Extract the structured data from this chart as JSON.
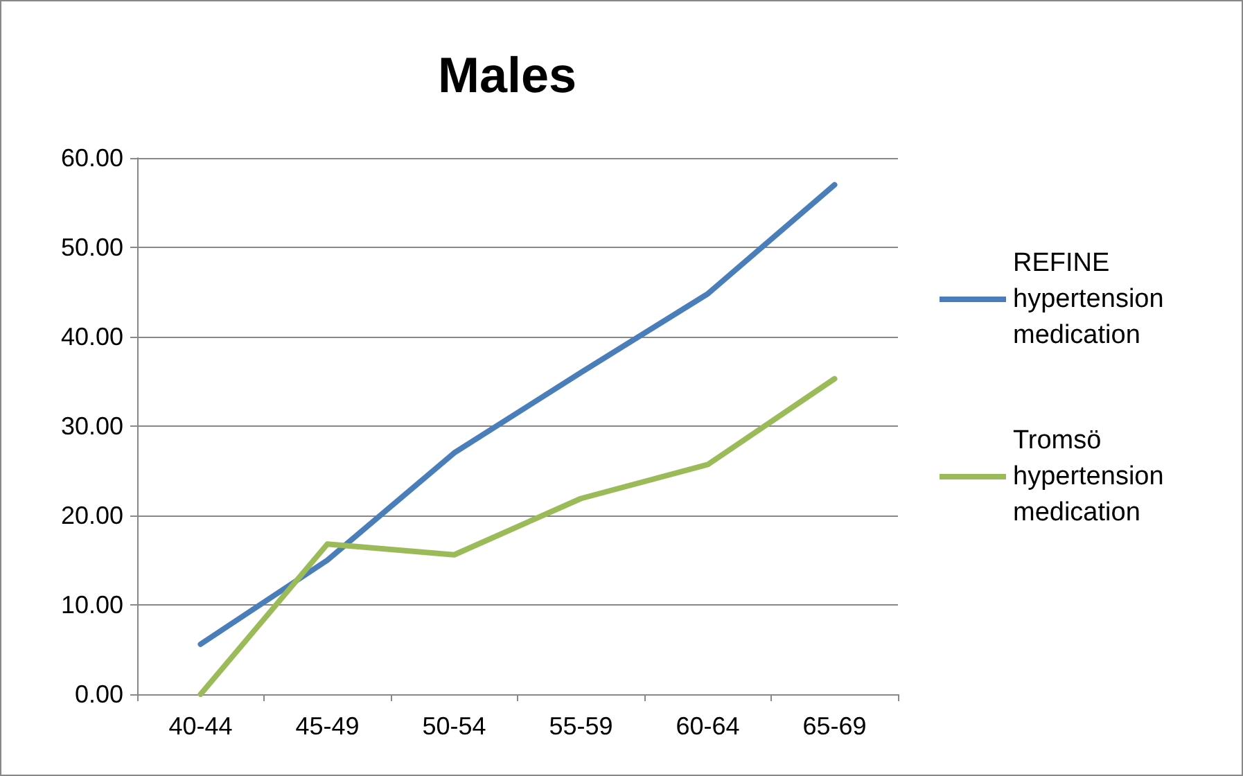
{
  "chart_data": {
    "type": "line",
    "title": "Males",
    "categories": [
      "40-44",
      "45-49",
      "50-54",
      "55-59",
      "60-64",
      "65-69"
    ],
    "series": [
      {
        "name": "REFINE hypertension medication",
        "color": "#4a7ebb",
        "values": [
          5.6,
          15,
          27,
          36,
          44.8,
          57
        ]
      },
      {
        "name": "Tromsö hypertension medication",
        "color": "#9bbb59",
        "values": [
          0,
          16.8,
          15.6,
          21.9,
          25.7,
          35.3
        ]
      }
    ],
    "ylim": [
      0,
      60
    ],
    "yticks": [
      {
        "value": 0,
        "label": "0.00"
      },
      {
        "value": 10,
        "label": "10.00"
      },
      {
        "value": 20,
        "label": "20.00"
      },
      {
        "value": 30,
        "label": "30.00"
      },
      {
        "value": 40,
        "label": "40.00"
      },
      {
        "value": 50,
        "label": "50.00"
      },
      {
        "value": 60,
        "label": "60.00"
      }
    ],
    "grid": "y",
    "legend": "right",
    "marker": "none",
    "line_style": "solid"
  }
}
